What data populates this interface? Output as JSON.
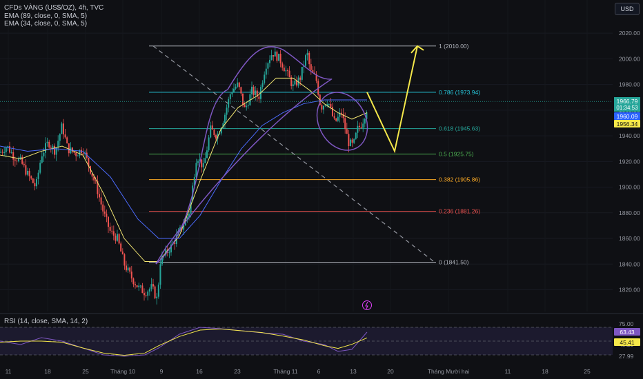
{
  "header": {
    "symbol_line": "CFDs VÀNG (US$/OZ), 4h, TVC",
    "ema1_line": "EMA (89, close, 0, SMA, 5)",
    "ema2_line": "EMA (34, close, 0, SMA, 5)",
    "currency_button": "USD"
  },
  "rsi_panel": {
    "legend": "RSI (14, close, SMA, 14, 2)",
    "axis_ticks": [
      "75.00",
      "45.20",
      "27.99"
    ],
    "price_tags": [
      {
        "value": "63.43",
        "color": "#7e57c2"
      },
      {
        "value": "45.41",
        "color": "#f5e84a"
      }
    ],
    "upper_band": 70,
    "lower_band": 30,
    "middle_line": 50
  },
  "chart_data": {
    "type": "candlestick",
    "title": "CFDs VÀNG (US$/OZ), 4h, TVC",
    "ylim": [
      1808,
      2030
    ],
    "y_ticks": [
      1820,
      1840,
      1860,
      1880,
      1900,
      1920,
      1940,
      1960,
      1980,
      2000,
      2020
    ],
    "x_ticks": [
      "11",
      "18",
      "25",
      "Tháng 10",
      "9",
      "16",
      "23",
      "Tháng 11",
      "6",
      "13",
      "20",
      "Tháng Mười hai",
      "11",
      "18",
      "25"
    ],
    "price_path": [
      [
        0,
        1927
      ],
      [
        10,
        1932
      ],
      [
        20,
        1924
      ],
      [
        30,
        1920
      ],
      [
        40,
        1910
      ],
      [
        52,
        1900
      ],
      [
        60,
        1925
      ],
      [
        70,
        1935
      ],
      [
        80,
        1928
      ],
      [
        90,
        1948
      ],
      [
        98,
        1930
      ],
      [
        110,
        1926
      ],
      [
        120,
        1930
      ],
      [
        130,
        1915
      ],
      [
        140,
        1900
      ],
      [
        150,
        1880
      ],
      [
        160,
        1865
      ],
      [
        170,
        1860
      ],
      [
        180,
        1840
      ],
      [
        190,
        1830
      ],
      [
        200,
        1822
      ],
      [
        210,
        1818
      ],
      [
        220,
        1822
      ],
      [
        228,
        1812
      ],
      [
        232,
        1842
      ],
      [
        240,
        1848
      ],
      [
        250,
        1855
      ],
      [
        260,
        1865
      ],
      [
        270,
        1875
      ],
      [
        275,
        1882
      ],
      [
        285,
        1925
      ],
      [
        295,
        1915
      ],
      [
        305,
        1945
      ],
      [
        315,
        1940
      ],
      [
        325,
        1955
      ],
      [
        335,
        1975
      ],
      [
        345,
        1980
      ],
      [
        355,
        1960
      ],
      [
        365,
        1975
      ],
      [
        375,
        1970
      ],
      [
        385,
        1995
      ],
      [
        395,
        2005
      ],
      [
        405,
        2000
      ],
      [
        415,
        1990
      ],
      [
        425,
        1978
      ],
      [
        435,
        1985
      ],
      [
        445,
        2005
      ],
      [
        450,
        1990
      ],
      [
        458,
        1985
      ],
      [
        465,
        1962
      ],
      [
        475,
        1968
      ],
      [
        485,
        1950
      ],
      [
        495,
        1958
      ],
      [
        505,
        1935
      ],
      [
        512,
        1932
      ],
      [
        518,
        1945
      ],
      [
        525,
        1950
      ],
      [
        532,
        1962
      ]
    ],
    "series": [
      {
        "name": "EMA (34, close, 0, SMA, 5)",
        "color": "#f4e773",
        "values": [
          [
            0,
            1925
          ],
          [
            30,
            1922
          ],
          [
            60,
            1928
          ],
          [
            90,
            1932
          ],
          [
            120,
            1925
          ],
          [
            150,
            1895
          ],
          [
            180,
            1860
          ],
          [
            210,
            1842
          ],
          [
            230,
            1842
          ],
          [
            260,
            1862
          ],
          [
            290,
            1905
          ],
          [
            320,
            1945
          ],
          [
            345,
            1962
          ],
          [
            375,
            1972
          ],
          [
            400,
            1985
          ],
          [
            425,
            1985
          ],
          [
            450,
            1975
          ],
          [
            470,
            1965
          ],
          [
            490,
            1958
          ],
          [
            510,
            1953
          ],
          [
            532,
            1958
          ]
        ]
      },
      {
        "name": "EMA (89, close, 0, SMA, 5)",
        "color": "#4c6cff",
        "values": [
          [
            0,
            1932
          ],
          [
            40,
            1928
          ],
          [
            80,
            1930
          ],
          [
            120,
            1928
          ],
          [
            160,
            1908
          ],
          [
            200,
            1875
          ],
          [
            230,
            1860
          ],
          [
            260,
            1860
          ],
          [
            290,
            1878
          ],
          [
            320,
            1905
          ],
          [
            350,
            1930
          ],
          [
            380,
            1948
          ],
          [
            410,
            1958
          ],
          [
            440,
            1965
          ],
          [
            470,
            1968
          ],
          [
            500,
            1968
          ],
          [
            532,
            1968
          ]
        ]
      }
    ],
    "fibonacci": {
      "levels": [
        {
          "ratio": "1",
          "label": "1 (2010.00)",
          "price": 2010.0,
          "color": "#b2b5be"
        },
        {
          "ratio": "0.786",
          "label": "0.786 (1973.94)",
          "price": 1973.94,
          "color": "#26c6da"
        },
        {
          "ratio": "0.618",
          "label": "0.618 (1945.63)",
          "price": 1945.63,
          "color": "#26a69a"
        },
        {
          "ratio": "0.5",
          "label": "0.5 (1925.75)",
          "price": 1925.75,
          "color": "#4caf50"
        },
        {
          "ratio": "0.382",
          "label": "0.382 (1905.86)",
          "price": 1905.86,
          "color": "#f9a825"
        },
        {
          "ratio": "0.236",
          "label": "0.236 (1881.26)",
          "price": 1881.26,
          "color": "#ef5350"
        },
        {
          "ratio": "0",
          "label": "0 (1841.50)",
          "price": 1841.5,
          "color": "#b2b5be"
        }
      ]
    },
    "projection_path": [
      [
        532,
        1974
      ],
      [
        572,
        1928
      ],
      [
        605,
        2010
      ]
    ],
    "last_price_tags": [
      {
        "value": "1966.79",
        "sub": "01:34:53",
        "color": "#26a69a"
      },
      {
        "value": "1960.09",
        "color": "#2962ff"
      },
      {
        "value": "1956.34",
        "color": "#f5e84a"
      }
    ],
    "rsi_values": [
      [
        0,
        50
      ],
      [
        30,
        45
      ],
      [
        60,
        55
      ],
      [
        90,
        50
      ],
      [
        120,
        40
      ],
      [
        150,
        30
      ],
      [
        180,
        28
      ],
      [
        210,
        30
      ],
      [
        230,
        40
      ],
      [
        260,
        60
      ],
      [
        290,
        70
      ],
      [
        320,
        68
      ],
      [
        350,
        65
      ],
      [
        380,
        62
      ],
      [
        410,
        60
      ],
      [
        440,
        50
      ],
      [
        470,
        45
      ],
      [
        490,
        35
      ],
      [
        510,
        38
      ],
      [
        532,
        63
      ]
    ]
  }
}
